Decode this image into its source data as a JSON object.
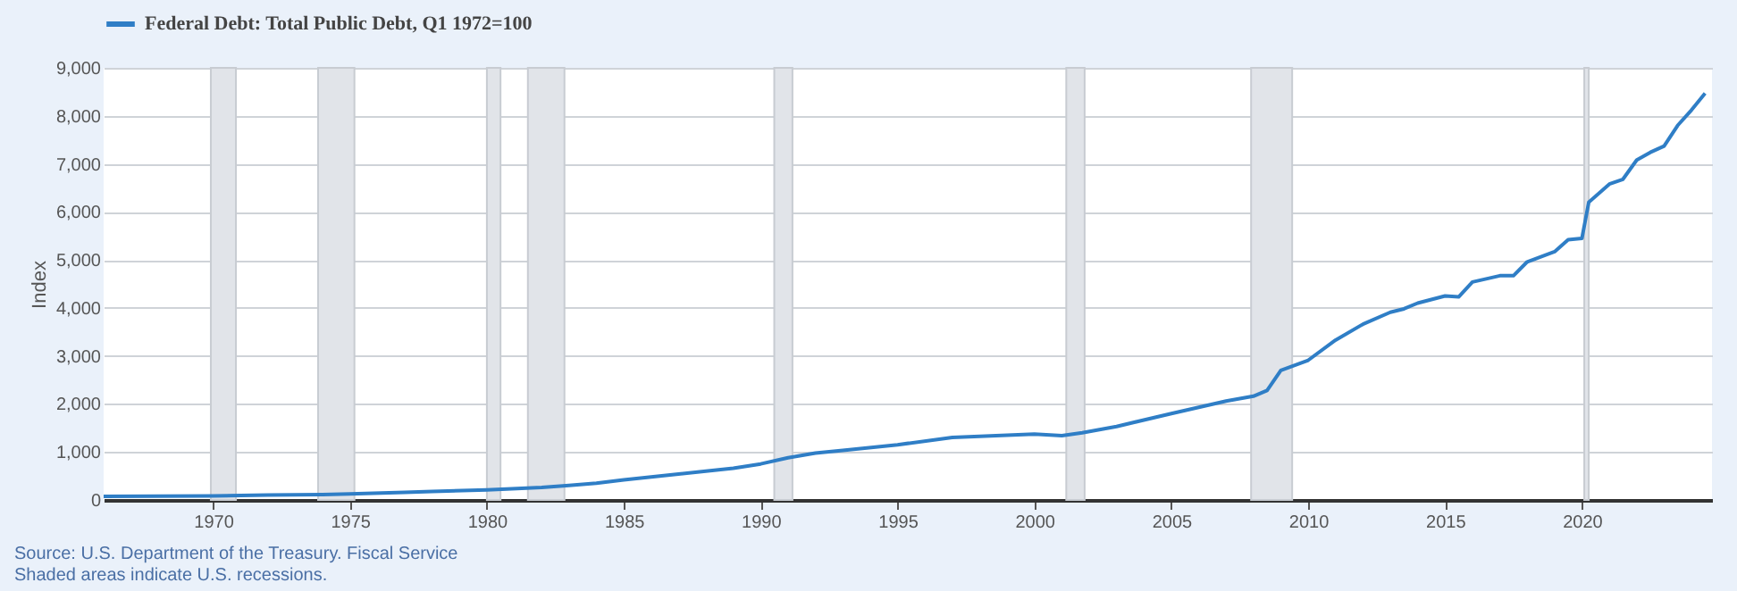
{
  "chart_data": {
    "type": "line",
    "ylabel": "Index",
    "x": [
      "1966-01",
      "1968-01",
      "1970-01",
      "1972-01",
      "1974-01",
      "1975-01",
      "1977-01",
      "1978-01",
      "1980-01",
      "1982-01",
      "1983-01",
      "1984-01",
      "1985-01",
      "1986-01",
      "1987-01",
      "1988-01",
      "1989-01",
      "1990-01",
      "1991-01",
      "1992-01",
      "1993-01",
      "1995-01",
      "1997-01",
      "2000-01",
      "2001-01",
      "2001-10",
      "2003-01",
      "2005-01",
      "2007-01",
      "2008-01",
      "2008-07",
      "2009-01",
      "2010-01",
      "2011-01",
      "2012-01",
      "2013-01",
      "2013-07",
      "2014-01",
      "2015-01",
      "2015-07",
      "2016-01",
      "2017-01",
      "2017-07",
      "2018-01",
      "2019-01",
      "2019-07",
      "2020-01",
      "2020-04",
      "2021-01",
      "2021-07",
      "2022-01",
      "2022-07",
      "2023-01",
      "2023-07",
      "2024-01",
      "2024-07"
    ],
    "series": [
      {
        "name": "Federal Debt: Total Public Debt, Q1 1972=100",
        "color": "#2f7ec6",
        "values": [
          75,
          80,
          85,
          100,
          110,
          125,
          160,
          175,
          210,
          260,
          300,
          350,
          420,
          480,
          540,
          600,
          660,
          750,
          880,
          975,
          1030,
          1150,
          1300,
          1370,
          1340,
          1400,
          1530,
          1800,
          2060,
          2160,
          2280,
          2700,
          2910,
          3330,
          3660,
          3910,
          3980,
          4100,
          4250,
          4230,
          4540,
          4670,
          4670,
          4960,
          5170,
          5420,
          5450,
          6200,
          6580,
          6680,
          7080,
          7240,
          7370,
          7800,
          8120,
          8470
        ]
      }
    ],
    "xlim": [
      "1966-01",
      "2024-10"
    ],
    "xticks": [
      {
        "value": "1970",
        "label": "1970"
      },
      {
        "value": "1975",
        "label": "1975"
      },
      {
        "value": "1980",
        "label": "1980"
      },
      {
        "value": "1985",
        "label": "1985"
      },
      {
        "value": "1990",
        "label": "1990"
      },
      {
        "value": "1995",
        "label": "1995"
      },
      {
        "value": "2000",
        "label": "2000"
      },
      {
        "value": "2005",
        "label": "2005"
      },
      {
        "value": "2010",
        "label": "2010"
      },
      {
        "value": "2015",
        "label": "2015"
      },
      {
        "value": "2020",
        "label": "2020"
      }
    ],
    "ylim": [
      0,
      9000
    ],
    "yticks": [
      0,
      {
        "value": 1000,
        "label": "1,000"
      },
      {
        "value": 2000,
        "label": "2,000"
      },
      {
        "value": 3000,
        "label": "3,000"
      },
      {
        "value": 4000,
        "label": "4,000"
      },
      {
        "value": 5000,
        "label": "5,000"
      },
      {
        "value": 6000,
        "label": "6,000"
      },
      {
        "value": 7000,
        "label": "7,000"
      },
      {
        "value": 8000,
        "label": "8,000"
      },
      {
        "value": 9000,
        "label": "9,000"
      }
    ],
    "bands": [
      {
        "axis": "x",
        "from": "1969-12",
        "to": "1970-11",
        "color": "#e1e4e9"
      },
      {
        "axis": "x",
        "from": "1973-11",
        "to": "1975-03",
        "color": "#e1e4e9"
      },
      {
        "axis": "x",
        "from": "1980-01",
        "to": "1980-07",
        "color": "#e1e4e9"
      },
      {
        "axis": "x",
        "from": "1981-07",
        "to": "1982-11",
        "color": "#e1e4e9"
      },
      {
        "axis": "x",
        "from": "1990-07",
        "to": "1991-03",
        "color": "#e1e4e9"
      },
      {
        "axis": "x",
        "from": "2001-03",
        "to": "2001-11",
        "color": "#e1e4e9"
      },
      {
        "axis": "x",
        "from": "2007-12",
        "to": "2009-06",
        "color": "#e1e4e9"
      },
      {
        "axis": "x",
        "from": "2020-02",
        "to": "2020-04",
        "color": "#e1e4e9"
      }
    ],
    "grid": "y",
    "legend": "top left",
    "annotations": [
      "Source: U.S. Department of the Treasury. Fiscal Service",
      "Shaded areas indicate U.S. recessions."
    ]
  }
}
